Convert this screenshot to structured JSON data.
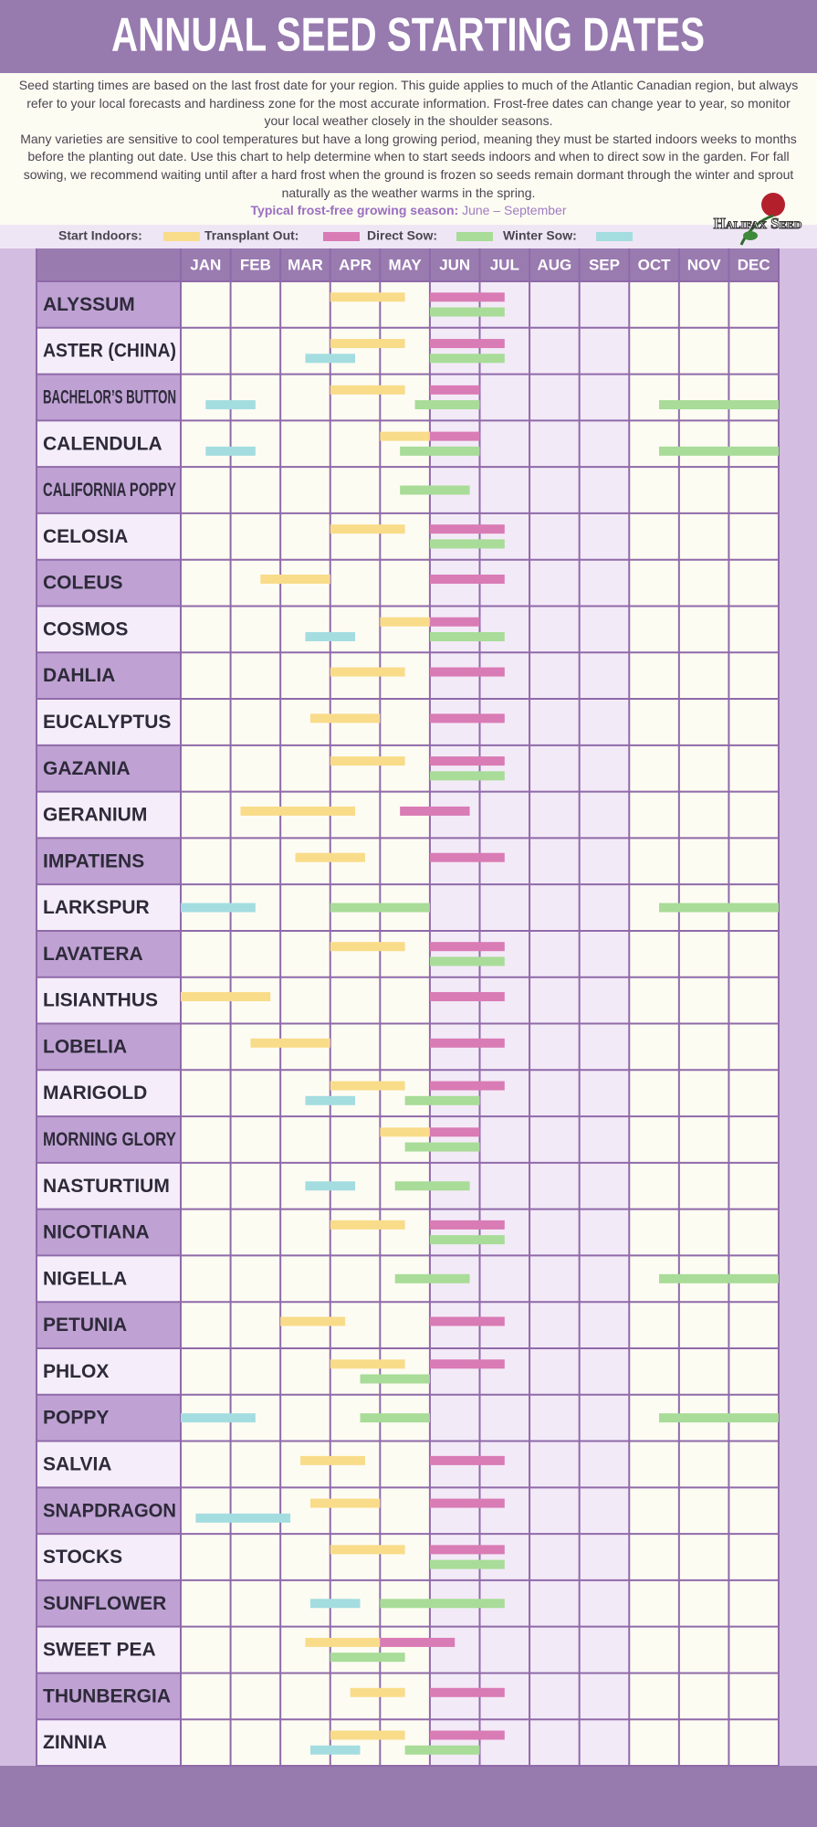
{
  "title": "ANNUAL SEED STARTING DATES",
  "intro": [
    "Seed starting times are based on the last frost date for your region. This guide applies to much of the Atlantic Canadian region, but always refer to your local forecasts and hardiness zone for the most accurate information. Frost-free dates can change year to year, so monitor your local weather closely in the shoulder seasons.",
    "Many varieties are sensitive to cool temperatures but have a long growing period, meaning they must be started indoors weeks to months before the planting out date. Use this chart to help determine when to start seeds indoors and when to direct sow in the garden. For fall sowing, we recommend waiting until after a hard frost when the ground is frozen so seeds remain dormant through the winter and sprout naturally as the weather warms in the spring."
  ],
  "season_label": "Typical frost-free growing season:",
  "season_value": "June – September",
  "logo": "Halifax Seed",
  "chart_data": {
    "type": "gantt",
    "months": [
      "JAN",
      "FEB",
      "MAR",
      "APR",
      "MAY",
      "JUN",
      "JUL",
      "AUG",
      "SEP",
      "OCT",
      "NOV",
      "DEC"
    ],
    "xlim": [
      0,
      12
    ],
    "categories": [
      "ALYSSUM",
      "ASTER (CHINA)",
      "BACHELOR’S BUTTON",
      "CALENDULA",
      "CALIFORNIA POPPY",
      "CELOSIA",
      "COLEUS",
      "COSMOS",
      "DAHLIA",
      "EUCALYPTUS",
      "GAZANIA",
      "GERANIUM",
      "IMPATIENS",
      "LARKSPUR",
      "LAVATERA",
      "LISIANTHUS",
      "LOBELIA",
      "MARIGOLD",
      "MORNING GLORY",
      "NASTURTIUM",
      "NICOTIANA",
      "NIGELLA",
      "PETUNIA",
      "PHLOX",
      "POPPY",
      "SALVIA",
      "SNAPDRAGON",
      "STOCKS",
      "SUNFLOWER",
      "SWEET PEA",
      "THUNBERGIA",
      "ZINNIA"
    ],
    "series": [
      {
        "name": "Start Indoors:",
        "color": "#f9dc8a",
        "values": [
          [
            [
              3,
              4.5
            ]
          ],
          [
            [
              3,
              4.5
            ]
          ],
          [
            [
              3,
              4.5
            ]
          ],
          [
            [
              4,
              5
            ]
          ],
          null,
          [
            [
              3,
              4.5
            ]
          ],
          [
            [
              1.6,
              3
            ]
          ],
          [
            [
              4,
              5
            ]
          ],
          [
            [
              3,
              4.5
            ]
          ],
          [
            [
              2.6,
              4
            ]
          ],
          [
            [
              3,
              4.5
            ]
          ],
          [
            [
              1.2,
              3.5
            ]
          ],
          [
            [
              2.3,
              3.7
            ]
          ],
          null,
          [
            [
              3,
              4.5
            ]
          ],
          [
            [
              0,
              1.8
            ]
          ],
          [
            [
              1.4,
              3
            ]
          ],
          [
            [
              3,
              4.5
            ]
          ],
          [
            [
              4,
              5
            ]
          ],
          null,
          [
            [
              3,
              4.5
            ]
          ],
          null,
          [
            [
              2,
              3.3
            ]
          ],
          [
            [
              3,
              4.5
            ]
          ],
          null,
          [
            [
              2.4,
              3.7
            ]
          ],
          [
            [
              2.6,
              4
            ]
          ],
          [
            [
              3,
              4.5
            ]
          ],
          null,
          [
            [
              2.5,
              4
            ]
          ],
          [
            [
              3.4,
              4.5
            ]
          ],
          [
            [
              3,
              4.5
            ]
          ]
        ]
      },
      {
        "name": "Transplant Out:",
        "color": "#d97bb5",
        "values": [
          [
            [
              5,
              6.5
            ]
          ],
          [
            [
              5,
              6.5
            ]
          ],
          [
            [
              5,
              6
            ]
          ],
          [
            [
              5,
              6
            ]
          ],
          null,
          [
            [
              5,
              6.5
            ]
          ],
          [
            [
              5,
              6.5
            ]
          ],
          [
            [
              5,
              6
            ]
          ],
          [
            [
              5,
              6.5
            ]
          ],
          [
            [
              5,
              6.5
            ]
          ],
          [
            [
              5,
              6.5
            ]
          ],
          [
            [
              4.4,
              5.8
            ]
          ],
          [
            [
              5,
              6.5
            ]
          ],
          null,
          [
            [
              5,
              6.5
            ]
          ],
          [
            [
              5,
              6.5
            ]
          ],
          [
            [
              5,
              6.5
            ]
          ],
          [
            [
              5,
              6.5
            ]
          ],
          [
            [
              5,
              6
            ]
          ],
          null,
          [
            [
              5,
              6.5
            ]
          ],
          null,
          [
            [
              5,
              6.5
            ]
          ],
          [
            [
              5,
              6.5
            ]
          ],
          null,
          [
            [
              5,
              6.5
            ]
          ],
          [
            [
              5,
              6.5
            ]
          ],
          [
            [
              5,
              6.5
            ]
          ],
          null,
          [
            [
              4,
              5.5
            ]
          ],
          [
            [
              5,
              6.5
            ]
          ],
          [
            [
              5,
              6.5
            ]
          ]
        ]
      },
      {
        "name": "Direct Sow:",
        "color": "#a8dc98",
        "values": [
          [
            [
              5,
              6.5
            ]
          ],
          [
            [
              5,
              6.5
            ]
          ],
          [
            [
              4.7,
              6
            ],
            [
              9.6,
              12
            ]
          ],
          [
            [
              4.4,
              6
            ],
            [
              9.6,
              12
            ]
          ],
          [
            [
              4.4,
              5.8
            ]
          ],
          [
            [
              5,
              6.5
            ]
          ],
          null,
          [
            [
              5,
              6.5
            ]
          ],
          null,
          null,
          [
            [
              5,
              6.5
            ]
          ],
          null,
          null,
          [
            [
              3,
              5
            ],
            [
              9.6,
              12
            ]
          ],
          [
            [
              5,
              6.5
            ]
          ],
          null,
          null,
          [
            [
              4.5,
              6
            ]
          ],
          [
            [
              4.5,
              6
            ]
          ],
          [
            [
              4.3,
              5.8
            ]
          ],
          [
            [
              5,
              6.5
            ]
          ],
          [
            [
              4.3,
              5.8
            ],
            [
              9.6,
              12
            ]
          ],
          null,
          [
            [
              3.6,
              5
            ]
          ],
          [
            [
              3.6,
              5
            ],
            [
              9.6,
              12
            ]
          ],
          null,
          null,
          [
            [
              5,
              6.5
            ]
          ],
          [
            [
              4,
              6.5
            ]
          ],
          [
            [
              3,
              4.5
            ]
          ],
          null,
          [
            [
              4.5,
              6
            ]
          ]
        ]
      },
      {
        "name": "Winter Sow:",
        "color": "#a4dde0",
        "values": [
          null,
          [
            [
              2.5,
              3.5
            ]
          ],
          [
            [
              0.5,
              1.5
            ]
          ],
          [
            [
              0.5,
              1.5
            ]
          ],
          null,
          null,
          null,
          [
            [
              2.5,
              3.5
            ]
          ],
          null,
          null,
          null,
          null,
          null,
          [
            [
              0,
              1.5
            ]
          ],
          null,
          null,
          null,
          [
            [
              2.5,
              3.5
            ]
          ],
          null,
          [
            [
              2.5,
              3.5
            ]
          ],
          null,
          null,
          null,
          null,
          [
            [
              0,
              1.5
            ]
          ],
          null,
          [
            [
              0.3,
              2.2
            ]
          ],
          null,
          [
            [
              2.6,
              3.6
            ]
          ],
          null,
          null,
          [
            [
              2.6,
              3.6
            ]
          ]
        ]
      }
    ]
  }
}
